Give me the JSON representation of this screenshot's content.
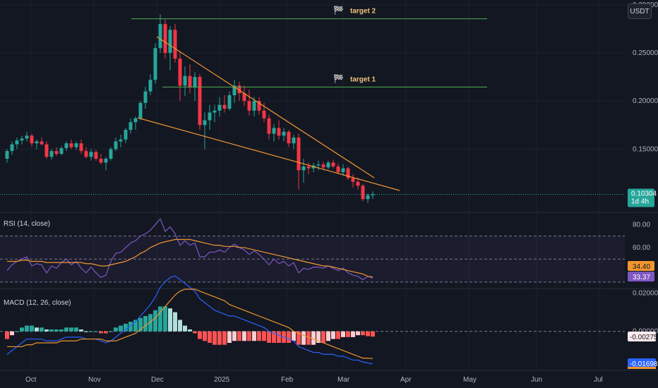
{
  "unit_button": "USDT",
  "colors": {
    "up": "#26a69a",
    "down": "#f23645",
    "wedge": "#f0962f",
    "target_line": "#4caf50",
    "rsi_line": "#7e57c2",
    "rsi_ma": "#f0962f",
    "macd_line": "#2962ff",
    "signal_line": "#f0962f",
    "hist_up_strong": "#26a69a",
    "hist_up_weak": "#b2dfdb",
    "hist_down_strong": "#ff5252",
    "hist_down_weak": "#ffcdd2"
  },
  "price_axis": {
    "ticks": [
      "0.30000",
      "0.25000",
      "0.20000",
      "0.15000"
    ],
    "tick_values": [
      0.3,
      0.25,
      0.2,
      0.15
    ]
  },
  "last_price": {
    "value": "0.10304",
    "countdown": "1d 4h"
  },
  "targets": [
    {
      "label": "target 2",
      "price": 0.2855
    },
    {
      "label": "target 1",
      "price": 0.2145
    }
  ],
  "time_axis": [
    "Oct",
    "Nov",
    "Dec",
    "2025",
    "Feb",
    "Mar",
    "Apr",
    "May",
    "Jun",
    "Jul"
  ],
  "rsi": {
    "title": "RSI (14, close)",
    "ticks": [
      "80.00",
      "60.00"
    ],
    "ma_value": "34.40",
    "rsi_value": "33.37"
  },
  "macd": {
    "title": "MACD (12, 26, close)",
    "ticks": [
      "0.02000",
      "0.00000"
    ],
    "hist_value": "-0.00275",
    "macd_value": "-0.01698"
  },
  "chart_data": {
    "type": "candlestick",
    "timeframe": "1d",
    "series_note": "daily candles, prices in USDT",
    "candles": [
      [
        0.14,
        0.15,
        0.136,
        0.148
      ],
      [
        0.148,
        0.158,
        0.144,
        0.155
      ],
      [
        0.155,
        0.162,
        0.15,
        0.159
      ],
      [
        0.159,
        0.164,
        0.155,
        0.161
      ],
      [
        0.161,
        0.168,
        0.158,
        0.164
      ],
      [
        0.164,
        0.166,
        0.153,
        0.156
      ],
      [
        0.156,
        0.16,
        0.15,
        0.158
      ],
      [
        0.158,
        0.162,
        0.154,
        0.155
      ],
      [
        0.155,
        0.158,
        0.14,
        0.142
      ],
      [
        0.142,
        0.15,
        0.139,
        0.148
      ],
      [
        0.148,
        0.152,
        0.143,
        0.145
      ],
      [
        0.145,
        0.153,
        0.144,
        0.151
      ],
      [
        0.151,
        0.158,
        0.148,
        0.156
      ],
      [
        0.156,
        0.16,
        0.15,
        0.152
      ],
      [
        0.152,
        0.158,
        0.149,
        0.156
      ],
      [
        0.156,
        0.16,
        0.145,
        0.148
      ],
      [
        0.148,
        0.152,
        0.14,
        0.142
      ],
      [
        0.142,
        0.15,
        0.138,
        0.147
      ],
      [
        0.147,
        0.149,
        0.138,
        0.14
      ],
      [
        0.14,
        0.145,
        0.134,
        0.136
      ],
      [
        0.136,
        0.142,
        0.128,
        0.14
      ],
      [
        0.14,
        0.152,
        0.138,
        0.15
      ],
      [
        0.15,
        0.162,
        0.148,
        0.158
      ],
      [
        0.158,
        0.165,
        0.152,
        0.16
      ],
      [
        0.16,
        0.172,
        0.156,
        0.17
      ],
      [
        0.17,
        0.182,
        0.166,
        0.178
      ],
      [
        0.178,
        0.184,
        0.17,
        0.182
      ],
      [
        0.182,
        0.2,
        0.18,
        0.198
      ],
      [
        0.198,
        0.215,
        0.192,
        0.21
      ],
      [
        0.21,
        0.228,
        0.206,
        0.222
      ],
      [
        0.222,
        0.26,
        0.218,
        0.255
      ],
      [
        0.255,
        0.29,
        0.25,
        0.28
      ],
      [
        0.28,
        0.285,
        0.244,
        0.25
      ],
      [
        0.25,
        0.278,
        0.232,
        0.274
      ],
      [
        0.274,
        0.28,
        0.24,
        0.244
      ],
      [
        0.244,
        0.252,
        0.2,
        0.216
      ],
      [
        0.216,
        0.236,
        0.205,
        0.226
      ],
      [
        0.226,
        0.238,
        0.208,
        0.214
      ],
      [
        0.214,
        0.23,
        0.2,
        0.225
      ],
      [
        0.225,
        0.228,
        0.17,
        0.175
      ],
      [
        0.175,
        0.188,
        0.15,
        0.18
      ],
      [
        0.18,
        0.196,
        0.17,
        0.188
      ],
      [
        0.188,
        0.196,
        0.178,
        0.19
      ],
      [
        0.19,
        0.204,
        0.184,
        0.196
      ],
      [
        0.196,
        0.206,
        0.188,
        0.192
      ],
      [
        0.192,
        0.21,
        0.19,
        0.206
      ],
      [
        0.206,
        0.222,
        0.198,
        0.216
      ],
      [
        0.216,
        0.22,
        0.2,
        0.208
      ],
      [
        0.208,
        0.216,
        0.195,
        0.2
      ],
      [
        0.2,
        0.212,
        0.185,
        0.19
      ],
      [
        0.19,
        0.204,
        0.184,
        0.2
      ],
      [
        0.2,
        0.204,
        0.186,
        0.19
      ],
      [
        0.19,
        0.198,
        0.178,
        0.182
      ],
      [
        0.182,
        0.186,
        0.16,
        0.166
      ],
      [
        0.166,
        0.176,
        0.158,
        0.172
      ],
      [
        0.172,
        0.18,
        0.16,
        0.164
      ],
      [
        0.164,
        0.172,
        0.158,
        0.168
      ],
      [
        0.168,
        0.17,
        0.152,
        0.156
      ],
      [
        0.156,
        0.165,
        0.15,
        0.162
      ],
      [
        0.162,
        0.166,
        0.108,
        0.128
      ],
      [
        0.128,
        0.14,
        0.115,
        0.132
      ],
      [
        0.132,
        0.136,
        0.124,
        0.13
      ],
      [
        0.13,
        0.136,
        0.126,
        0.133
      ],
      [
        0.133,
        0.138,
        0.128,
        0.134
      ],
      [
        0.134,
        0.137,
        0.128,
        0.131
      ],
      [
        0.131,
        0.138,
        0.129,
        0.136
      ],
      [
        0.136,
        0.139,
        0.13,
        0.132
      ],
      [
        0.132,
        0.135,
        0.124,
        0.126
      ],
      [
        0.126,
        0.134,
        0.122,
        0.13
      ],
      [
        0.13,
        0.132,
        0.118,
        0.12
      ],
      [
        0.12,
        0.124,
        0.11,
        0.116
      ],
      [
        0.116,
        0.12,
        0.108,
        0.112
      ],
      [
        0.112,
        0.114,
        0.096,
        0.098
      ],
      [
        0.098,
        0.104,
        0.094,
        0.102
      ],
      [
        0.102,
        0.106,
        0.098,
        0.103
      ]
    ],
    "rsi_values": [
      40,
      45,
      48,
      50,
      52,
      44,
      46,
      45,
      38,
      44,
      42,
      47,
      50,
      45,
      48,
      42,
      38,
      43,
      38,
      34,
      36,
      48,
      55,
      56,
      60,
      64,
      66,
      70,
      72,
      75,
      80,
      85,
      74,
      78,
      72,
      62,
      66,
      62,
      64,
      52,
      52,
      56,
      56,
      58,
      56,
      60,
      63,
      60,
      58,
      54,
      57,
      54,
      50,
      45,
      50,
      46,
      48,
      44,
      47,
      38,
      42,
      41,
      43,
      43,
      42,
      44,
      42,
      40,
      42,
      38,
      36,
      35,
      32,
      35,
      33.37
    ],
    "rsi_ma_values": [
      48,
      48,
      48,
      49,
      49,
      48,
      48,
      48,
      47,
      47,
      47,
      47,
      47,
      47,
      47,
      47,
      46,
      46,
      45,
      44,
      44,
      45,
      46,
      47,
      48,
      50,
      52,
      55,
      57,
      60,
      62,
      64,
      65,
      66,
      67,
      67,
      67,
      67,
      66,
      65,
      64,
      63,
      62,
      62,
      61,
      61,
      61,
      60,
      60,
      59,
      58,
      57,
      56,
      55,
      54,
      53,
      52,
      51,
      50,
      49,
      48,
      47,
      46,
      45,
      44,
      44,
      43,
      42,
      41,
      40,
      39,
      38,
      37,
      35,
      34.4
    ],
    "macd_values": [
      -0.012,
      -0.01,
      -0.008,
      -0.006,
      -0.004,
      -0.004,
      -0.004,
      -0.004,
      -0.005,
      -0.005,
      -0.005,
      -0.004,
      -0.003,
      -0.003,
      -0.003,
      -0.003,
      -0.004,
      -0.004,
      -0.004,
      -0.005,
      -0.006,
      -0.005,
      -0.003,
      -0.001,
      0.001,
      0.003,
      0.005,
      0.008,
      0.011,
      0.014,
      0.018,
      0.023,
      0.026,
      0.028,
      0.029,
      0.027,
      0.025,
      0.023,
      0.021,
      0.017,
      0.015,
      0.013,
      0.011,
      0.01,
      0.009,
      0.008,
      0.008,
      0.007,
      0.006,
      0.005,
      0.004,
      0.003,
      0.002,
      0.0,
      -0.001,
      -0.002,
      -0.003,
      -0.004,
      -0.005,
      -0.008,
      -0.009,
      -0.01,
      -0.011,
      -0.011,
      -0.012,
      -0.012,
      -0.012,
      -0.013,
      -0.013,
      -0.014,
      -0.015,
      -0.015,
      -0.016,
      -0.0165,
      -0.01698
    ],
    "signal_values": [
      -0.008,
      -0.008,
      -0.008,
      -0.008,
      -0.007,
      -0.007,
      -0.006,
      -0.006,
      -0.006,
      -0.006,
      -0.006,
      -0.005,
      -0.005,
      -0.005,
      -0.005,
      -0.004,
      -0.004,
      -0.004,
      -0.004,
      -0.004,
      -0.005,
      -0.005,
      -0.005,
      -0.004,
      -0.003,
      -0.002,
      -0.001,
      0.001,
      0.003,
      0.005,
      0.007,
      0.01,
      0.013,
      0.016,
      0.019,
      0.021,
      0.022,
      0.022,
      0.022,
      0.021,
      0.02,
      0.019,
      0.018,
      0.017,
      0.016,
      0.014,
      0.013,
      0.012,
      0.011,
      0.01,
      0.009,
      0.008,
      0.007,
      0.006,
      0.005,
      0.004,
      0.003,
      0.002,
      0.0,
      -0.001,
      -0.002,
      -0.003,
      -0.004,
      -0.005,
      -0.006,
      -0.007,
      -0.008,
      -0.009,
      -0.01,
      -0.011,
      -0.012,
      -0.013,
      -0.014,
      -0.014,
      -0.01423
    ],
    "x_range_note": "time axis extends to Jul",
    "y_range": [
      0.085,
      0.305
    ],
    "rsi_range": [
      25,
      90
    ],
    "macd_range": [
      -0.02,
      0.022
    ]
  }
}
